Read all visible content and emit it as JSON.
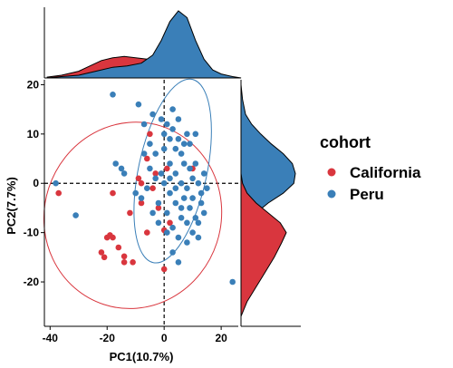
{
  "chart_data": {
    "type": "scatter",
    "xlabel": "PC1(10.7%)",
    "ylabel": "PC2(7.7%)",
    "xlim": [
      -42,
      26
    ],
    "ylim": [
      -29,
      21
    ],
    "xticks": [
      -40,
      -20,
      0,
      20
    ],
    "yticks": [
      -20,
      -10,
      0,
      10,
      20
    ],
    "reference_lines": {
      "x": 0,
      "y": 0,
      "style": "dashed"
    },
    "legend": {
      "title": "cohort",
      "placement": "right"
    },
    "marginal_densities": {
      "top": "PC1 density by cohort",
      "right": "PC2 density by cohort"
    },
    "colors": {
      "California": "#d9363e",
      "Peru": "#3a7fb8"
    },
    "series": [
      {
        "name": "California",
        "color": "#d9363e",
        "points": [
          [
            -37,
            -2
          ],
          [
            -22,
            -14
          ],
          [
            -19,
            -10.5
          ],
          [
            -18,
            -11
          ],
          [
            -18,
            -2
          ],
          [
            -14,
            -14.8
          ],
          [
            -14,
            -16
          ],
          [
            -11,
            -16
          ],
          [
            -8,
            -4
          ],
          [
            -6,
            -10
          ],
          [
            -5,
            10
          ],
          [
            0,
            -17.4
          ],
          [
            -8,
            0
          ],
          [
            -3,
            2
          ],
          [
            10,
            3
          ],
          [
            -21,
            -15
          ],
          [
            -20,
            -11
          ],
          [
            -16,
            -13
          ],
          [
            -12,
            -6
          ],
          [
            -9,
            1
          ],
          [
            -6,
            5
          ],
          [
            -4,
            -1
          ],
          [
            -2,
            -5
          ],
          [
            1,
            3
          ],
          [
            2,
            -8
          ],
          [
            0,
            -9.5
          ]
        ]
      },
      {
        "name": "Peru",
        "color": "#3a7fb8",
        "points": [
          [
            -18,
            18
          ],
          [
            -38,
            0
          ],
          [
            -31,
            -6.5
          ],
          [
            -17,
            4
          ],
          [
            -15,
            3
          ],
          [
            -14,
            2
          ],
          [
            -9,
            16
          ],
          [
            -7,
            12
          ],
          [
            -5,
            8
          ],
          [
            -4,
            14
          ],
          [
            -3,
            6
          ],
          [
            -1,
            13
          ],
          [
            0,
            10
          ],
          [
            1,
            12
          ],
          [
            2,
            9
          ],
          [
            3,
            11
          ],
          [
            4,
            7
          ],
          [
            5,
            9
          ],
          [
            6,
            6
          ],
          [
            7,
            8
          ],
          [
            8,
            10
          ],
          [
            9,
            3
          ],
          [
            10,
            1
          ],
          [
            11,
            4
          ],
          [
            12,
            0
          ],
          [
            13,
            -2
          ],
          [
            14,
            -6
          ],
          [
            12,
            -8
          ],
          [
            10,
            -10
          ],
          [
            8,
            -12
          ],
          [
            6,
            -7
          ],
          [
            4,
            -4
          ],
          [
            2,
            -2
          ],
          [
            0,
            0
          ],
          [
            -2,
            -4
          ],
          [
            -4,
            -6
          ],
          [
            -6,
            -1
          ],
          [
            -8,
            -3
          ],
          [
            -10,
            -2
          ],
          [
            1,
            -6
          ],
          [
            3,
            -9
          ],
          [
            5,
            -11
          ],
          [
            7,
            -3
          ],
          [
            9,
            -5
          ],
          [
            11,
            -7
          ],
          [
            13,
            -4
          ],
          [
            15,
            -1
          ],
          [
            2,
            4
          ],
          [
            4,
            2
          ],
          [
            6,
            0
          ],
          [
            8,
            -1
          ],
          [
            -1,
            2
          ],
          [
            -3,
            1
          ],
          [
            3,
            -14
          ],
          [
            5,
            -16
          ],
          [
            1,
            -10
          ],
          [
            -2,
            -8
          ],
          [
            24,
            -20
          ],
          [
            7,
            4
          ],
          [
            9,
            8
          ],
          [
            11,
            10
          ],
          [
            5,
            13
          ],
          [
            3,
            15
          ],
          [
            0,
            7
          ],
          [
            -5,
            3
          ],
          [
            2,
            1
          ],
          [
            4,
            -1
          ],
          [
            6,
            -5
          ],
          [
            8,
            -8
          ],
          [
            10,
            -3
          ],
          [
            12,
            -11
          ],
          [
            14,
            2
          ],
          [
            -7,
            6
          ]
        ]
      }
    ],
    "ellipses": [
      {
        "series": "California",
        "cx": -11,
        "cy": -6.5,
        "rx": 31,
        "ry": 19,
        "angle_deg": 18
      },
      {
        "series": "Peru",
        "cx": 3,
        "cy": 2.5,
        "rx": 12,
        "ry": 19,
        "angle_deg": 12
      }
    ],
    "density_top": {
      "California": [
        [
          -41,
          0.006
        ],
        [
          -36,
          0.02
        ],
        [
          -30,
          0.05
        ],
        [
          -26,
          0.09
        ],
        [
          -22,
          0.13
        ],
        [
          -18,
          0.15
        ],
        [
          -14,
          0.16
        ],
        [
          -10,
          0.15
        ],
        [
          -6,
          0.14
        ],
        [
          -2,
          0.12
        ],
        [
          2,
          0.1
        ],
        [
          6,
          0.05
        ],
        [
          10,
          0.02
        ],
        [
          14,
          0.006
        ],
        [
          19,
          0.0
        ]
      ],
      "Peru": [
        [
          -41,
          0.0
        ],
        [
          -36,
          0.01
        ],
        [
          -30,
          0.02
        ],
        [
          -24,
          0.05
        ],
        [
          -18,
          0.08
        ],
        [
          -13,
          0.09
        ],
        [
          -8,
          0.11
        ],
        [
          -4,
          0.17
        ],
        [
          -1,
          0.28
        ],
        [
          2,
          0.42
        ],
        [
          5,
          0.5
        ],
        [
          8,
          0.45
        ],
        [
          11,
          0.28
        ],
        [
          14,
          0.14
        ],
        [
          17,
          0.06
        ],
        [
          20,
          0.03
        ],
        [
          24,
          0.01
        ],
        [
          27,
          0.0
        ]
      ]
    },
    "density_right": {
      "California": [
        [
          -27,
          0.0
        ],
        [
          -24,
          0.02
        ],
        [
          -21,
          0.05
        ],
        [
          -18,
          0.08
        ],
        [
          -15,
          0.11
        ],
        [
          -12,
          0.135
        ],
        [
          -10,
          0.15
        ],
        [
          -8,
          0.13
        ],
        [
          -6,
          0.09
        ],
        [
          -4,
          0.05
        ],
        [
          -2,
          0.02
        ],
        [
          0,
          0.005
        ],
        [
          2,
          0.0
        ]
      ],
      "Peru": [
        [
          -10,
          0.0
        ],
        [
          -8,
          0.02
        ],
        [
          -6,
          0.05
        ],
        [
          -4,
          0.09
        ],
        [
          -2,
          0.14
        ],
        [
          0,
          0.175
        ],
        [
          2,
          0.18
        ],
        [
          4,
          0.17
        ],
        [
          6,
          0.14
        ],
        [
          8,
          0.1
        ],
        [
          10,
          0.065
        ],
        [
          12,
          0.035
        ],
        [
          14,
          0.015
        ],
        [
          17,
          0.005
        ],
        [
          20,
          0.0
        ]
      ]
    }
  }
}
